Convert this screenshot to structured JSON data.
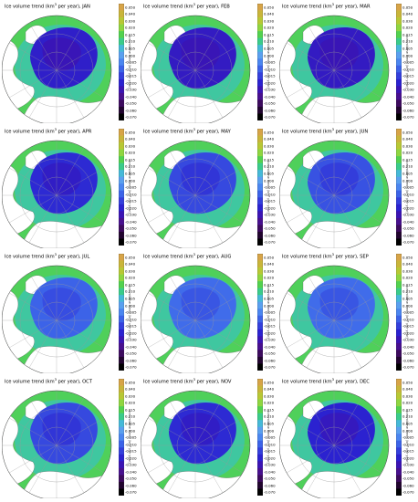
{
  "chart_data": {
    "type": "heatmap",
    "colorbar_ticks": [
      "0.050",
      "0.040",
      "0.030",
      "0.020",
      "0.015",
      "0.010",
      "0.005",
      "0.000",
      "-0.005",
      "-0.010",
      "-0.015",
      "-0.020",
      "-0.030",
      "-0.040",
      "-0.050",
      "-0.060",
      "-0.070"
    ],
    "colorbar_colors": [
      "#d7a447",
      "#c9b53a",
      "#b8c834",
      "#8fd640",
      "#52d24e",
      "#3acc8a",
      "#45b9d8",
      "#5aa0ef",
      "#4b86f0",
      "#3c63e8",
      "#3440dc",
      "#2b22d0",
      "#3b14b4",
      "#48108f",
      "#3d0b5e",
      "#22052f",
      "#000000"
    ],
    "colorbar_label": "Ice volume trend (km³ per year)",
    "panels": [
      {
        "title_pre": "Ice volume trend (km",
        "title_sup": "3",
        "title_post": " per year), JAN"
      },
      {
        "title_pre": "Ice volume trend (km",
        "title_sup": "3",
        "title_post": " per year), FEB"
      },
      {
        "title_pre": "Ice volume trend (km",
        "title_sup": "3",
        "title_post": " per year), MAR"
      },
      {
        "title_pre": "Ice volume trend (km",
        "title_sup": "3",
        "title_post": " per year), APR"
      },
      {
        "title_pre": "Ice volume trend (km",
        "title_sup": "3",
        "title_post": " per year), MAY"
      },
      {
        "title_pre": "Ice volume trend (km",
        "title_sup": "3",
        "title_post": " per year), JUN"
      },
      {
        "title_pre": "Ice volume trend (km",
        "title_sup": "3",
        "title_post": " per year), JUL"
      },
      {
        "title_pre": "Ice volume trend (km",
        "title_sup": "3",
        "title_post": " per year), AUG"
      },
      {
        "title_pre": "Ice volume trend (km",
        "title_sup": "3",
        "title_post": " per year), SEP"
      },
      {
        "title_pre": "Ice volume trend (km",
        "title_sup": "3",
        "title_post": " per year), OCT"
      },
      {
        "title_pre": "Ice volume trend (km",
        "title_sup": "3",
        "title_post": " per year), NOV"
      },
      {
        "title_pre": "Ice volume trend (km",
        "title_sup": "3",
        "title_post": " per year), DEC"
      }
    ],
    "ice_trend_level": [
      0.85,
      0.9,
      0.9,
      0.75,
      0.55,
      0.5,
      0.4,
      0.35,
      0.35,
      0.55,
      0.75,
      0.8
    ]
  }
}
